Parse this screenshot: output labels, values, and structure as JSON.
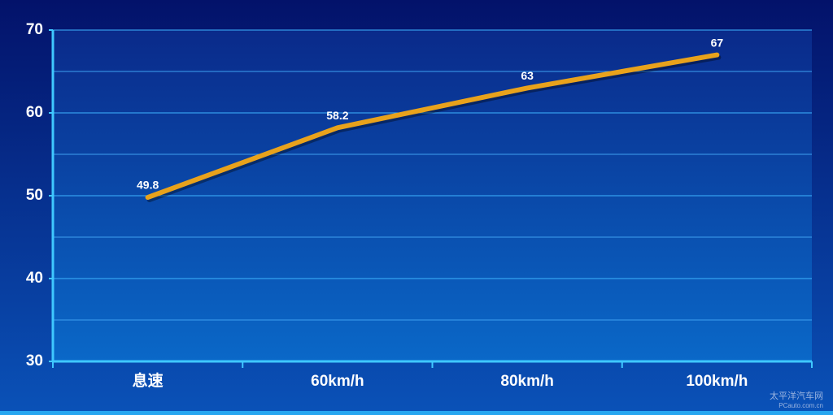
{
  "chart_data": {
    "type": "line",
    "categories": [
      "息速",
      "60km/h",
      "80km/h",
      "100km/h"
    ],
    "series": [
      {
        "color": "#e8a21c",
        "values": [
          49.8,
          58.2,
          63,
          67
        ]
      }
    ],
    "ylim": [
      30,
      70
    ],
    "yticks": [
      30,
      40,
      50,
      60,
      70
    ],
    "minor_yticks": [
      35,
      45,
      55,
      65
    ],
    "grid": true,
    "watermark": {
      "title": "太平洋汽车网",
      "subtitle": "PCauto.com.cn"
    }
  }
}
